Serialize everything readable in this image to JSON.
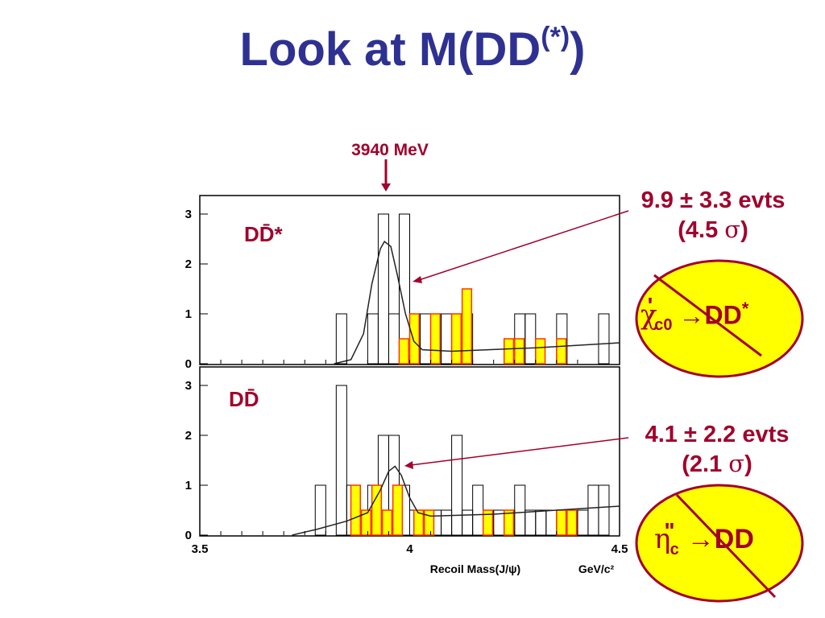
{
  "title": {
    "main": "Look at M(DD",
    "sup": "(*)",
    "close": ")"
  },
  "marker": {
    "label": "3940 MeV"
  },
  "annotations": {
    "top": {
      "line1": "9.9 ± 3.3 evts",
      "line2_open": "(4.5 ",
      "sigma": "σ",
      "line2_close": ")"
    },
    "bottom": {
      "line1": "4.1 ± 2.2 evts",
      "line2_open": "(2.1 ",
      "sigma": "σ",
      "line2_close": ")"
    }
  },
  "ovals": {
    "top": {
      "chi": "χ",
      "prime": "'",
      "sub": "c0",
      "arrow": "→",
      "final": "DD",
      "star": "*"
    },
    "bottom": {
      "eta": "η",
      "dprime": "\"",
      "sub": "c",
      "arrow": "→",
      "final": "DD"
    }
  },
  "colors": {
    "title": "#2e3192",
    "annotation": "#a1002c",
    "fill": "#ffff00",
    "fill_edge": "#ff3300",
    "oval": "#ffff00"
  },
  "chart_data": [
    {
      "type": "bar",
      "panel_label": "DD̄*",
      "xlim": [
        3.5,
        4.5
      ],
      "ylim": [
        0,
        3
      ],
      "yticks": [
        "0",
        "1",
        "2",
        "3"
      ],
      "bin_width": 0.025,
      "series": [
        {
          "style": "open",
          "bins": [
            [
              3.825,
              1
            ],
            [
              3.9,
              1
            ],
            [
              3.925,
              3
            ],
            [
              3.95,
              1
            ],
            [
              3.975,
              3
            ],
            [
              4.0,
              1
            ],
            [
              4.025,
              1
            ],
            [
              4.05,
              1
            ],
            [
              4.075,
              1
            ],
            [
              4.1,
              1
            ],
            [
              4.125,
              1
            ],
            [
              4.25,
              1
            ],
            [
              4.275,
              1
            ],
            [
              4.35,
              1
            ],
            [
              4.45,
              1
            ]
          ]
        },
        {
          "style": "filled",
          "bins": [
            [
              3.975,
              0.5
            ],
            [
              4.0,
              1
            ],
            [
              4.05,
              1
            ],
            [
              4.1,
              1
            ],
            [
              4.125,
              1.5
            ],
            [
              4.225,
              0.5
            ],
            [
              4.25,
              0.5
            ],
            [
              4.3,
              0.5
            ],
            [
              4.35,
              0.5
            ]
          ]
        }
      ],
      "fit": [
        [
          3.82,
          0
        ],
        [
          3.86,
          0.08
        ],
        [
          3.89,
          0.6
        ],
        [
          3.91,
          1.6
        ],
        [
          3.93,
          2.3
        ],
        [
          3.94,
          2.45
        ],
        [
          3.955,
          2.35
        ],
        [
          3.97,
          1.8
        ],
        [
          3.99,
          1.0
        ],
        [
          4.01,
          0.45
        ],
        [
          4.03,
          0.28
        ],
        [
          4.1,
          0.25
        ],
        [
          4.3,
          0.32
        ],
        [
          4.5,
          0.42
        ]
      ]
    },
    {
      "type": "bar",
      "panel_label": "DD̄",
      "xlim": [
        3.5,
        4.5
      ],
      "ylim": [
        0,
        3
      ],
      "xticks": [
        "3.5",
        "4",
        "4.5"
      ],
      "yticks": [
        "0",
        "1",
        "2",
        "3"
      ],
      "xlabel": "Recoil Mass(J/ψ)",
      "xunit": "GeV/c²",
      "bin_width": 0.025,
      "series": [
        {
          "style": "open",
          "bins": [
            [
              3.775,
              1
            ],
            [
              3.8,
              0
            ],
            [
              3.825,
              3
            ],
            [
              3.85,
              1
            ],
            [
              3.875,
              0.5
            ],
            [
              3.9,
              1
            ],
            [
              3.925,
              2
            ],
            [
              3.95,
              2
            ],
            [
              3.975,
              1
            ],
            [
              4.0,
              0.5
            ],
            [
              4.025,
              0.5
            ],
            [
              4.05,
              0.5
            ],
            [
              4.075,
              0.5
            ],
            [
              4.1,
              2
            ],
            [
              4.125,
              0.5
            ],
            [
              4.15,
              1
            ],
            [
              4.175,
              0.5
            ],
            [
              4.2,
              0.5
            ],
            [
              4.225,
              0.5
            ],
            [
              4.25,
              1
            ],
            [
              4.275,
              0.5
            ],
            [
              4.3,
              0.5
            ],
            [
              4.325,
              0.5
            ],
            [
              4.35,
              0.5
            ],
            [
              4.375,
              0.5
            ],
            [
              4.4,
              0.5
            ],
            [
              4.425,
              1
            ],
            [
              4.45,
              1
            ]
          ]
        },
        {
          "style": "filled",
          "bins": [
            [
              3.86,
              1
            ],
            [
              3.885,
              0.5
            ],
            [
              3.91,
              1
            ],
            [
              3.935,
              0.5
            ],
            [
              3.96,
              1
            ],
            [
              4.01,
              0.5
            ],
            [
              4.035,
              0.5
            ],
            [
              4.175,
              0.5
            ],
            [
              4.225,
              0.5
            ],
            [
              4.35,
              0.5
            ],
            [
              4.375,
              0.5
            ]
          ]
        }
      ],
      "fit": [
        [
          3.72,
          0
        ],
        [
          3.78,
          0.12
        ],
        [
          3.85,
          0.28
        ],
        [
          3.9,
          0.45
        ],
        [
          3.93,
          0.9
        ],
        [
          3.95,
          1.28
        ],
        [
          3.965,
          1.38
        ],
        [
          3.98,
          1.2
        ],
        [
          4.0,
          0.75
        ],
        [
          4.02,
          0.45
        ],
        [
          4.05,
          0.38
        ],
        [
          4.2,
          0.42
        ],
        [
          4.5,
          0.58
        ]
      ]
    }
  ]
}
